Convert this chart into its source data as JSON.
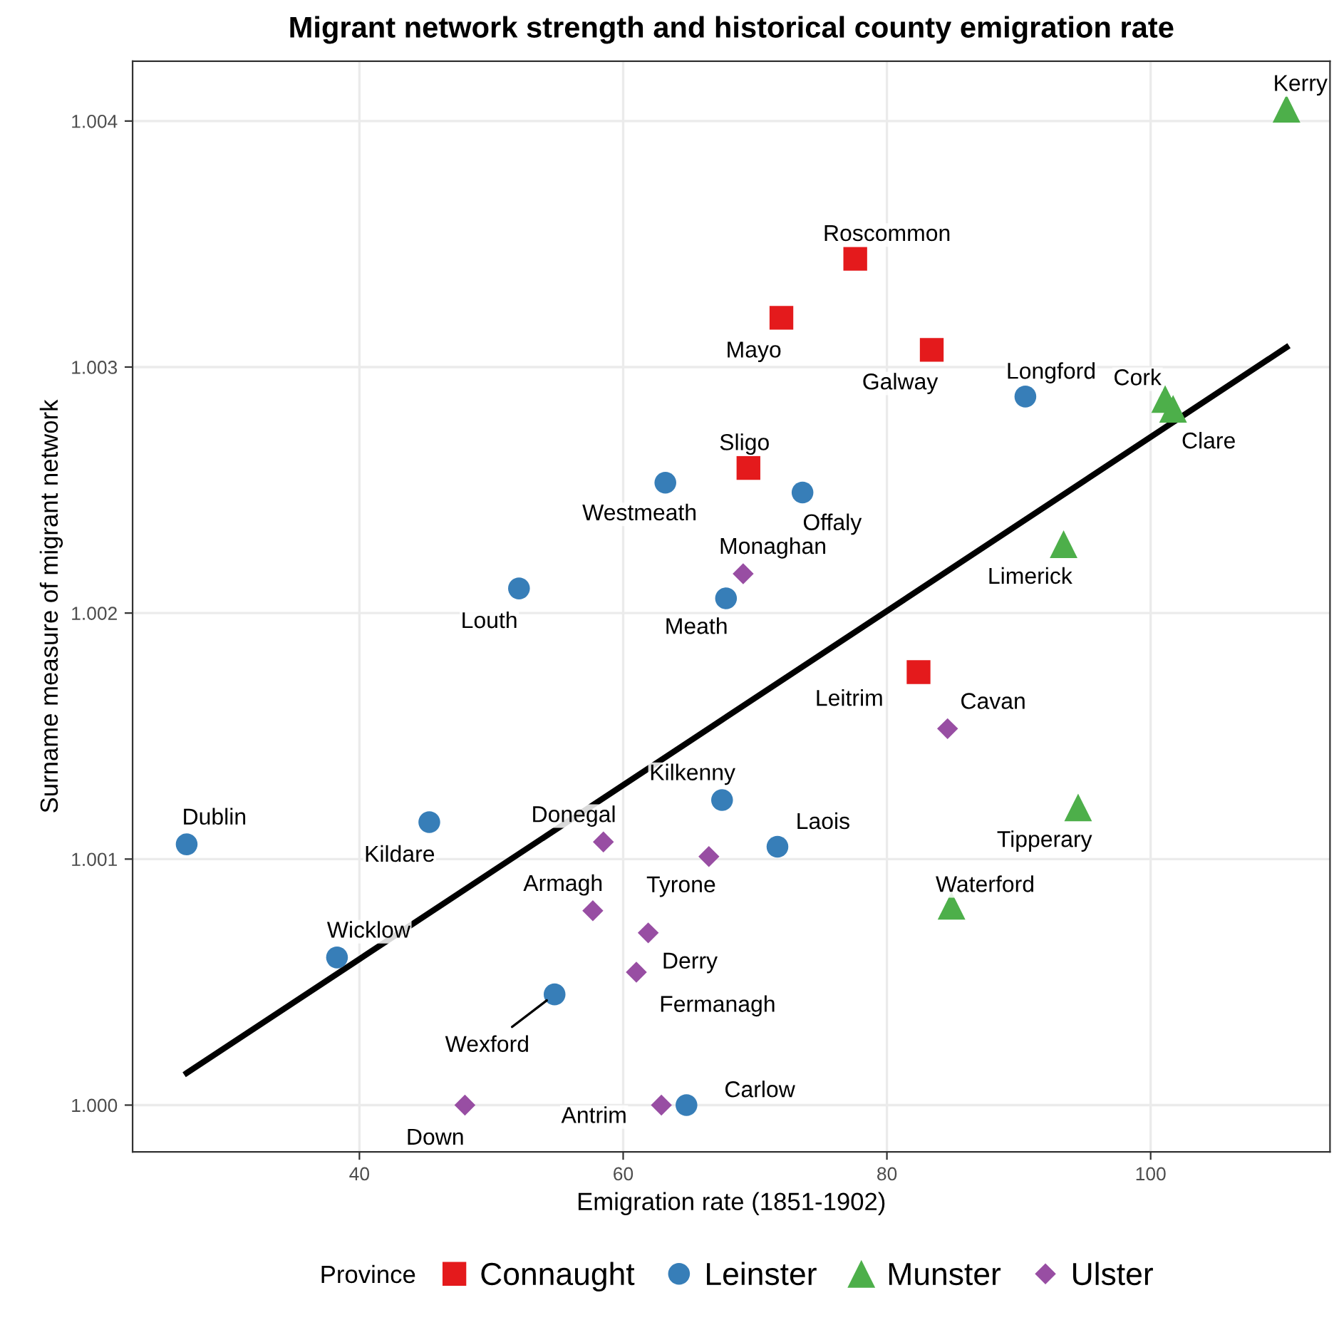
{
  "chart_data": {
    "type": "scatter",
    "title": "Migrant network strength and historical county emigration rate",
    "xlabel": "Emigration rate (1851-1902)",
    "ylabel": "Surname measure of migrant network",
    "legend_title": "Province",
    "xlim": [
      22.8,
      113.6
    ],
    "ylim": [
      0.99981,
      1.004243
    ],
    "xticks": [
      40,
      60,
      80,
      100
    ],
    "yticks": [
      {
        "value": 1.0,
        "label": "1.000"
      },
      {
        "value": 1.001,
        "label": "1.001"
      },
      {
        "value": 1.002,
        "label": "1.002"
      },
      {
        "value": 1.003,
        "label": "1.003"
      },
      {
        "value": 1.004,
        "label": "1.004"
      }
    ],
    "grid": true,
    "legend": "bottom",
    "series": [
      {
        "name": "Connaught",
        "color": "#e41a1c",
        "marker": "square",
        "x": [
          77.6,
          72.0,
          83.4,
          69.5,
          82.4
        ],
        "values": [
          1.00344,
          1.0032,
          1.00307,
          1.00259,
          1.00176
        ]
      },
      {
        "name": "Leinster",
        "color": "#377eb8",
        "marker": "circle",
        "x": [
          90.5,
          63.2,
          73.6,
          52.1,
          67.8,
          67.5,
          71.7,
          45.3,
          26.9,
          38.3,
          54.8,
          64.8
        ],
        "values": [
          1.00288,
          1.00253,
          1.00249,
          1.0021,
          1.00206,
          1.00124,
          1.00105,
          1.00115,
          1.00106,
          1.0006,
          1.00045,
          1.0
        ]
      },
      {
        "name": "Munster",
        "color": "#4daf4a",
        "marker": "triangle",
        "x": [
          110.3,
          101.1,
          101.7,
          93.4,
          94.5,
          84.9
        ],
        "values": [
          1.00405,
          1.00287,
          1.00283,
          1.00228,
          1.00121,
          1.00081
        ]
      },
      {
        "name": "Ulster",
        "color": "#984ea3",
        "marker": "diamond",
        "x": [
          69.1,
          84.6,
          58.5,
          66.5,
          57.7,
          61.9,
          61.0,
          48.0,
          62.9
        ],
        "values": [
          1.00216,
          1.00153,
          1.00107,
          1.00101,
          1.00079,
          1.0007,
          1.00054,
          1.0,
          1.0
        ]
      },
      {
        "type": "line",
        "color": "#000000",
        "x": [
          26.9,
          110.3
        ],
        "values": [
          1.00013,
          1.00308
        ]
      }
    ],
    "annotations": [
      {
        "text": "Roscommon",
        "x": 77.6,
        "y": 1.00344
      },
      {
        "text": "Mayo",
        "x": 72.0,
        "y": 1.0032
      },
      {
        "text": "Galway",
        "x": 83.4,
        "y": 1.00307
      },
      {
        "text": "Sligo",
        "x": 69.5,
        "y": 1.00259
      },
      {
        "text": "Leitrim",
        "x": 82.4,
        "y": 1.00176
      },
      {
        "text": "Longford",
        "x": 90.5,
        "y": 1.00288
      },
      {
        "text": "Westmeath",
        "x": 63.2,
        "y": 1.00253
      },
      {
        "text": "Offaly",
        "x": 73.6,
        "y": 1.00249
      },
      {
        "text": "Louth",
        "x": 52.1,
        "y": 1.0021
      },
      {
        "text": "Meath",
        "x": 67.8,
        "y": 1.00206
      },
      {
        "text": "Kilkenny",
        "x": 67.5,
        "y": 1.00124
      },
      {
        "text": "Laois",
        "x": 71.7,
        "y": 1.00105
      },
      {
        "text": "Kildare",
        "x": 45.3,
        "y": 1.00115
      },
      {
        "text": "Dublin",
        "x": 26.9,
        "y": 1.00106
      },
      {
        "text": "Wicklow",
        "x": 38.3,
        "y": 1.0006
      },
      {
        "text": "Wexford",
        "x": 54.8,
        "y": 1.00045
      },
      {
        "text": "Carlow",
        "x": 64.8,
        "y": 1.0
      },
      {
        "text": "Kerry",
        "x": 110.3,
        "y": 1.00405
      },
      {
        "text": "Cork",
        "x": 101.1,
        "y": 1.00287
      },
      {
        "text": "Clare",
        "x": 101.7,
        "y": 1.00283
      },
      {
        "text": "Limerick",
        "x": 93.4,
        "y": 1.00228
      },
      {
        "text": "Tipperary",
        "x": 94.5,
        "y": 1.00121
      },
      {
        "text": "Waterford",
        "x": 84.9,
        "y": 1.00081
      },
      {
        "text": "Monaghan",
        "x": 69.1,
        "y": 1.00216
      },
      {
        "text": "Cavan",
        "x": 84.6,
        "y": 1.00153
      },
      {
        "text": "Donegal",
        "x": 58.5,
        "y": 1.00107
      },
      {
        "text": "Tyrone",
        "x": 66.5,
        "y": 1.00101
      },
      {
        "text": "Armagh",
        "x": 57.7,
        "y": 1.00079
      },
      {
        "text": "Derry",
        "x": 61.9,
        "y": 1.0007
      },
      {
        "text": "Fermanagh",
        "x": 61.0,
        "y": 1.00054
      },
      {
        "text": "Down",
        "x": 48.0,
        "y": 1.0
      },
      {
        "text": "Antrim",
        "x": 62.9,
        "y": 1.0
      }
    ]
  }
}
